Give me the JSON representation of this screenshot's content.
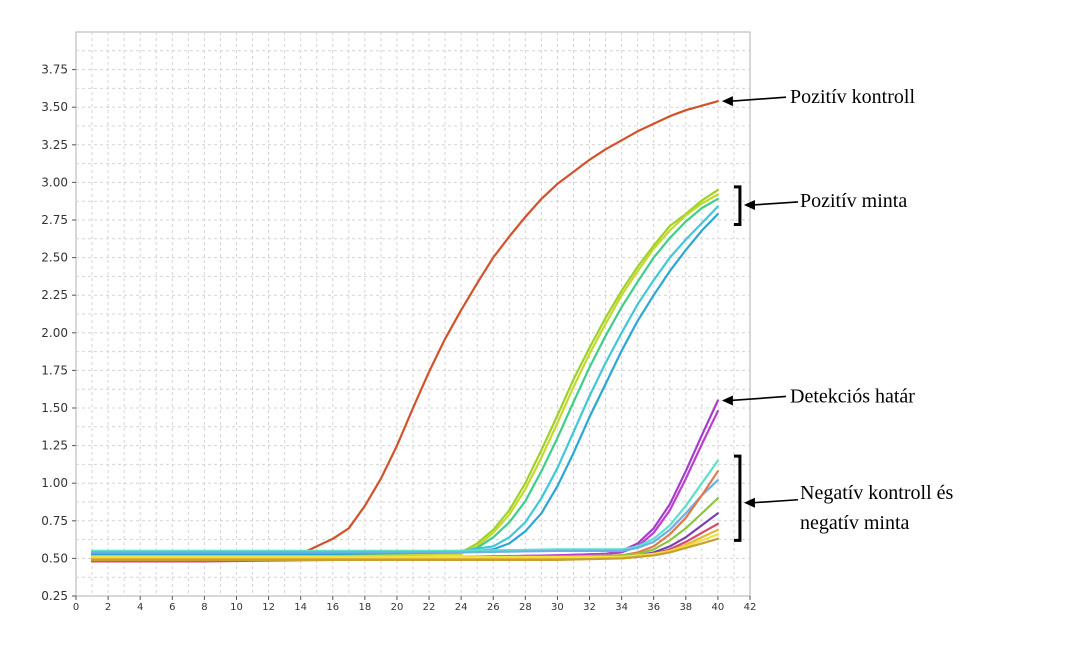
{
  "chart_data": {
    "type": "line",
    "title": "",
    "xlabel": "",
    "ylabel": "",
    "xlim": [
      0,
      42
    ],
    "ylim": [
      0.25,
      4.0
    ],
    "x_ticks": [
      0,
      2,
      4,
      6,
      8,
      10,
      12,
      14,
      16,
      18,
      20,
      22,
      24,
      26,
      28,
      30,
      32,
      34,
      36,
      38,
      40,
      42
    ],
    "x_tick_labels": [
      "0",
      "2",
      "4",
      "6",
      "8",
      "10",
      "12",
      "14",
      "16",
      "18",
      "20",
      "22",
      "24",
      "26",
      "28",
      "30",
      "32",
      "34",
      "36",
      "38",
      "40",
      "42"
    ],
    "y_ticks": [
      0.25,
      0.5,
      0.75,
      1.0,
      1.25,
      1.5,
      1.75,
      2.0,
      2.25,
      2.5,
      2.75,
      3.0,
      3.25,
      3.5,
      3.75
    ],
    "y_tick_labels": [
      "0.25",
      "0.50",
      "0.75",
      "1.00",
      "1.25",
      "1.50",
      "1.75",
      "2.00",
      "2.25",
      "2.50",
      "2.75",
      "3.00",
      "3.25",
      "3.50",
      "3.75"
    ],
    "grid": true,
    "legend": "none",
    "series": [
      {
        "color": "#d2522a",
        "x": [
          1,
          4,
          8,
          12,
          14,
          15,
          16,
          17,
          18,
          19,
          20,
          21,
          22,
          23,
          24,
          25,
          26,
          27,
          28,
          29,
          30,
          31,
          32,
          33,
          34,
          35,
          36,
          37,
          38,
          39,
          40
        ],
        "y": [
          0.49,
          0.49,
          0.5,
          0.51,
          0.53,
          0.58,
          0.63,
          0.7,
          0.85,
          1.03,
          1.25,
          1.5,
          1.74,
          1.96,
          2.15,
          2.33,
          2.5,
          2.64,
          2.77,
          2.89,
          2.99,
          3.07,
          3.15,
          3.22,
          3.28,
          3.34,
          3.39,
          3.44,
          3.48,
          3.51,
          3.54
        ]
      },
      {
        "color": "#9fd226",
        "x": [
          1,
          8,
          16,
          24,
          25,
          26,
          27,
          28,
          29,
          30,
          31,
          32,
          33,
          34,
          35,
          36,
          37,
          38,
          39,
          40
        ],
        "y": [
          0.52,
          0.52,
          0.52,
          0.54,
          0.6,
          0.69,
          0.82,
          1.0,
          1.22,
          1.45,
          1.69,
          1.9,
          2.1,
          2.28,
          2.44,
          2.58,
          2.71,
          2.79,
          2.88,
          2.95
        ]
      },
      {
        "color": "#c4d82e",
        "x": [
          1,
          8,
          16,
          24,
          25,
          26,
          27,
          28,
          29,
          30,
          31,
          32,
          33,
          34,
          35,
          36,
          37,
          38,
          39,
          40
        ],
        "y": [
          0.51,
          0.51,
          0.51,
          0.53,
          0.58,
          0.67,
          0.79,
          0.96,
          1.17,
          1.4,
          1.64,
          1.86,
          2.06,
          2.25,
          2.41,
          2.56,
          2.68,
          2.78,
          2.86,
          2.92
        ]
      },
      {
        "color": "#3fcf8a",
        "x": [
          1,
          8,
          16,
          24,
          25,
          26,
          27,
          28,
          29,
          30,
          31,
          32,
          33,
          34,
          35,
          36,
          37,
          38,
          39,
          40
        ],
        "y": [
          0.53,
          0.53,
          0.53,
          0.54,
          0.57,
          0.64,
          0.74,
          0.88,
          1.08,
          1.3,
          1.54,
          1.77,
          1.98,
          2.17,
          2.34,
          2.5,
          2.63,
          2.74,
          2.83,
          2.89
        ]
      },
      {
        "color": "#40c8d8",
        "x": [
          1,
          8,
          16,
          24,
          26,
          27,
          28,
          29,
          30,
          31,
          32,
          33,
          34,
          35,
          36,
          37,
          38,
          39,
          40
        ],
        "y": [
          0.54,
          0.54,
          0.54,
          0.55,
          0.58,
          0.64,
          0.74,
          0.9,
          1.1,
          1.34,
          1.58,
          1.8,
          2.0,
          2.19,
          2.35,
          2.5,
          2.62,
          2.73,
          2.84
        ]
      },
      {
        "color": "#2aa7d6",
        "x": [
          1,
          8,
          16,
          24,
          26,
          27,
          28,
          29,
          30,
          31,
          32,
          33,
          34,
          35,
          36,
          37,
          38,
          39,
          40
        ],
        "y": [
          0.53,
          0.53,
          0.53,
          0.54,
          0.56,
          0.6,
          0.68,
          0.8,
          0.98,
          1.2,
          1.44,
          1.66,
          1.88,
          2.08,
          2.25,
          2.41,
          2.55,
          2.68,
          2.79
        ]
      },
      {
        "color": "#a63cc9",
        "x": [
          1,
          8,
          16,
          24,
          30,
          33,
          34,
          35,
          36,
          37,
          38,
          39,
          40
        ],
        "y": [
          0.5,
          0.5,
          0.5,
          0.51,
          0.52,
          0.53,
          0.55,
          0.6,
          0.7,
          0.86,
          1.08,
          1.32,
          1.55
        ]
      },
      {
        "color": "#bb3fd0",
        "x": [
          1,
          8,
          16,
          24,
          30,
          33,
          34,
          35,
          36,
          37,
          38,
          39,
          40
        ],
        "y": [
          0.5,
          0.5,
          0.5,
          0.51,
          0.52,
          0.53,
          0.54,
          0.58,
          0.67,
          0.82,
          1.03,
          1.26,
          1.48
        ]
      },
      {
        "color": "#5fe0c8",
        "x": [
          1,
          8,
          16,
          24,
          30,
          34,
          35,
          36,
          37,
          38,
          39,
          40
        ],
        "y": [
          0.55,
          0.55,
          0.55,
          0.55,
          0.56,
          0.56,
          0.58,
          0.63,
          0.72,
          0.85,
          1.0,
          1.15
        ]
      },
      {
        "color": "#6db0e8",
        "x": [
          1,
          8,
          16,
          24,
          30,
          34,
          35,
          36,
          37,
          38,
          39,
          40
        ],
        "y": [
          0.54,
          0.54,
          0.54,
          0.54,
          0.55,
          0.55,
          0.57,
          0.61,
          0.69,
          0.8,
          0.92,
          1.02
        ]
      },
      {
        "color": "#e07a4a",
        "x": [
          1,
          8,
          16,
          24,
          30,
          34,
          35,
          36,
          37,
          38,
          39,
          40
        ],
        "y": [
          0.5,
          0.5,
          0.5,
          0.5,
          0.51,
          0.52,
          0.54,
          0.58,
          0.66,
          0.77,
          0.92,
          1.08
        ]
      },
      {
        "color": "#8cc640",
        "x": [
          1,
          8,
          16,
          24,
          30,
          34,
          35,
          36,
          37,
          38,
          39,
          40
        ],
        "y": [
          0.5,
          0.5,
          0.5,
          0.5,
          0.51,
          0.52,
          0.53,
          0.56,
          0.62,
          0.7,
          0.8,
          0.9
        ]
      },
      {
        "color": "#7a3fb0",
        "x": [
          1,
          8,
          16,
          24,
          30,
          34,
          35,
          36,
          37,
          38,
          39,
          40
        ],
        "y": [
          0.49,
          0.49,
          0.49,
          0.5,
          0.5,
          0.51,
          0.52,
          0.54,
          0.58,
          0.64,
          0.72,
          0.8
        ]
      },
      {
        "color": "#d84a6a",
        "x": [
          1,
          8,
          16,
          24,
          30,
          34,
          35,
          36,
          37,
          38,
          39,
          40
        ],
        "y": [
          0.48,
          0.48,
          0.49,
          0.49,
          0.5,
          0.5,
          0.51,
          0.53,
          0.56,
          0.61,
          0.67,
          0.73
        ]
      },
      {
        "color": "#e8b83a",
        "x": [
          1,
          8,
          16,
          24,
          30,
          34,
          35,
          36,
          37,
          38,
          39,
          40
        ],
        "y": [
          0.5,
          0.5,
          0.5,
          0.5,
          0.5,
          0.51,
          0.52,
          0.53,
          0.55,
          0.59,
          0.64,
          0.69
        ]
      },
      {
        "color": "#f0e040",
        "x": [
          1,
          8,
          16,
          24,
          30,
          34,
          35,
          36,
          37,
          38,
          39,
          40
        ],
        "y": [
          0.51,
          0.51,
          0.51,
          0.51,
          0.51,
          0.51,
          0.52,
          0.53,
          0.55,
          0.58,
          0.62,
          0.66
        ]
      },
      {
        "color": "#c8a030",
        "x": [
          1,
          8,
          16,
          24,
          30,
          34,
          35,
          36,
          37,
          38,
          39,
          40
        ],
        "y": [
          0.49,
          0.49,
          0.49,
          0.49,
          0.49,
          0.5,
          0.51,
          0.52,
          0.54,
          0.57,
          0.6,
          0.63
        ]
      }
    ],
    "annotations": [
      {
        "label": "Pozitív kontroll",
        "point_x": 40,
        "point_y": 3.54,
        "bracket": false
      },
      {
        "label": "Pozitív minta",
        "point_x": 40.5,
        "point_y": 2.85,
        "bracket": true,
        "bracket_from": 2.72,
        "bracket_to": 2.97
      },
      {
        "label": "Detekciós határ",
        "point_x": 40,
        "point_y": 1.55,
        "bracket": false
      },
      {
        "lines": [
          "Negatív kontroll és",
          "negatív minta"
        ],
        "point_x": 40.5,
        "point_y": 0.87,
        "bracket": true,
        "bracket_from": 0.62,
        "bracket_to": 1.18
      }
    ]
  }
}
